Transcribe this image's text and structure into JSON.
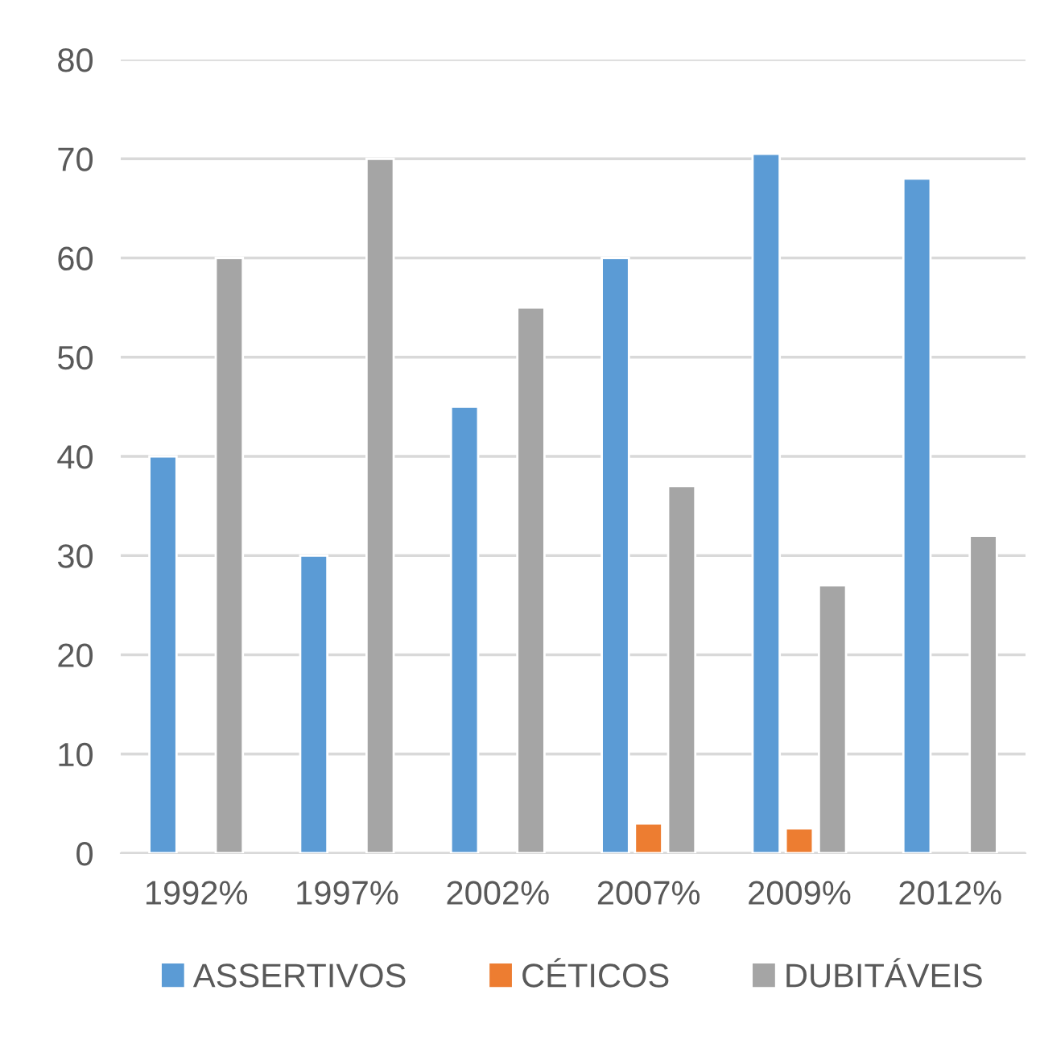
{
  "chart_data": {
    "type": "bar",
    "categories": [
      "1992%",
      "1997%",
      "2002%",
      "2007%",
      "2009%",
      "2012%"
    ],
    "series": [
      {
        "name": "ASSERTIVOS",
        "color": "#5b9bd5",
        "values": [
          40,
          30,
          45,
          60,
          70.5,
          68
        ]
      },
      {
        "name": "CÉTICOS",
        "color": "#ed7d31",
        "values": [
          null,
          null,
          null,
          3,
          2.5,
          null
        ]
      },
      {
        "name": "DUBITÁVEIS",
        "color": "#a5a5a5",
        "values": [
          60,
          70,
          55,
          37,
          27,
          32
        ]
      }
    ],
    "ylim": [
      0,
      80
    ],
    "yticks": [
      0,
      10,
      20,
      30,
      40,
      50,
      60,
      70,
      80
    ],
    "grid": "y",
    "legend": "bottom"
  }
}
